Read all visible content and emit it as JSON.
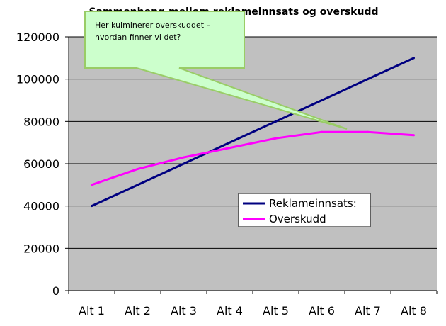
{
  "chart_data": {
    "type": "line",
    "title": "Sammenheng mellom reklameinnsats og overskudd",
    "categories": [
      "Alt 1",
      "Alt 2",
      "Alt 3",
      "Alt 4",
      "Alt 5",
      "Alt 6",
      "Alt 7",
      "Alt 8"
    ],
    "y_ticks": [
      "0",
      "20000",
      "40000",
      "60000",
      "80000",
      "100000",
      "120000"
    ],
    "ylim": [
      0,
      120000
    ],
    "grid": true,
    "legend_position": "right-middle",
    "series": [
      {
        "name": "Reklameinnsats:",
        "color": "#000080",
        "values": [
          40000,
          50000,
          60000,
          70000,
          80000,
          90000,
          100000,
          110000
        ]
      },
      {
        "name": "Overskudd",
        "color": "#ff00ff",
        "values": [
          50000,
          57500,
          63000,
          67500,
          72000,
          75000,
          75000,
          73500
        ]
      }
    ],
    "annotation": {
      "line1": "Her kulminerer overskuddet –",
      "line2": "hvordan finner vi det?"
    },
    "colors": {
      "plot_background": "#c0c0c0",
      "callout_fill": "#ccffcc",
      "callout_border": "#99cc66"
    }
  }
}
